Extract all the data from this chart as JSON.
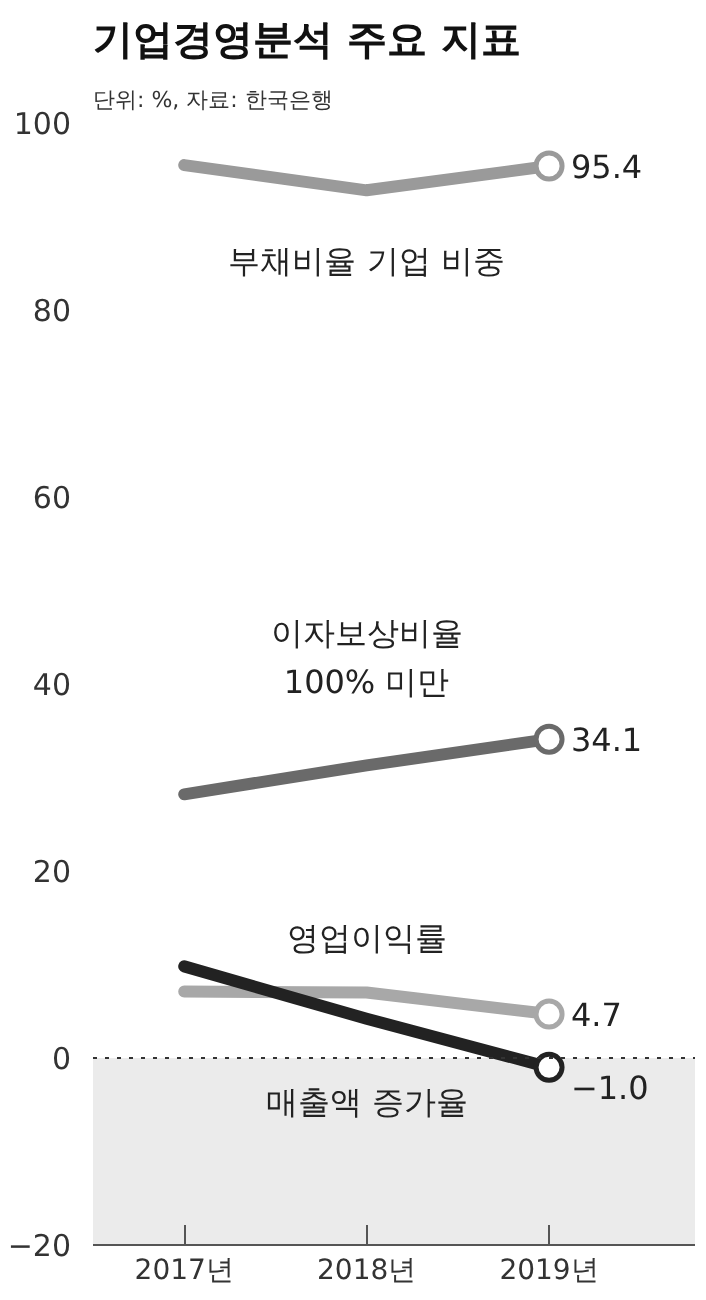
{
  "chart_data": {
    "type": "line",
    "title": "기업경영분석 주요 지표",
    "subtitle": "단위: %, 자료: 한국은행",
    "categories": [
      "2017년",
      "2018년",
      "2019년"
    ],
    "ylim": [
      -20,
      100
    ],
    "yticks": [
      -20,
      0,
      20,
      40,
      60,
      80,
      100
    ],
    "grid": false,
    "line_style": "solid",
    "series": [
      {
        "name": "부채비율 기업 비중",
        "color": "#9a9a9a",
        "values": [
          95.5,
          92.8,
          95.4
        ],
        "value_labels": [
          null,
          null,
          "95.4"
        ]
      },
      {
        "name": "이자보상비율\n100% 미만",
        "color": "#6a6a6a",
        "values": [
          28.2,
          31.3,
          34.1
        ],
        "value_labels": [
          null,
          null,
          "34.1"
        ]
      },
      {
        "name": "영업이익률",
        "color": "#a8a8a8",
        "values": [
          7.1,
          7.0,
          4.7
        ],
        "value_labels": [
          null,
          null,
          "4.7"
        ]
      },
      {
        "name": "매출액 증가율",
        "color": "#222222",
        "values": [
          9.8,
          4.2,
          -1.0
        ],
        "value_labels": [
          null,
          null,
          "−1.0"
        ]
      }
    ],
    "ref_lines": [
      {
        "axis": "y",
        "value": 0,
        "line_style": "dotted",
        "color": "#333333"
      }
    ],
    "bands": [
      {
        "axis": "y",
        "from": 0,
        "to": -20,
        "color": "#ebebeb"
      }
    ]
  }
}
